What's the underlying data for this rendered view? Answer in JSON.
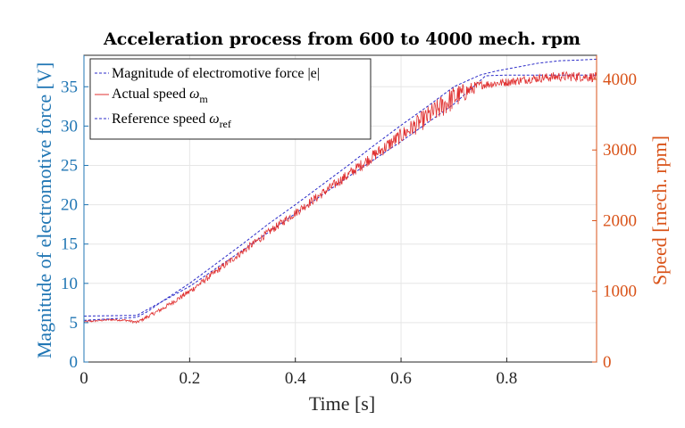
{
  "colors": {
    "left_axis": "#2076B4",
    "right_axis": "#D95319",
    "emf": "#2B2BC8",
    "actual": "#E03030",
    "reference": "#2B2BC8"
  },
  "chart_data": {
    "type": "line",
    "title": "Acceleration process from 600 to 4000 mech. rpm",
    "xlabel": "Time [s]",
    "ylabel_left": "Magnitude of electromotive force [V]",
    "ylabel_right": "Speed [mech. rpm]",
    "xlim": [
      0,
      0.97
    ],
    "ylim_left": [
      0,
      39
    ],
    "ylim_right": [
      0,
      4340
    ],
    "x_ticks": [
      "0",
      "0.2",
      "0.4",
      "0.6",
      "0.8"
    ],
    "x_tick_values": [
      0,
      0.2,
      0.4,
      0.6,
      0.8
    ],
    "y_left_ticks": [
      "0",
      "5",
      "10",
      "15",
      "20",
      "25",
      "30",
      "35"
    ],
    "y_left_tick_values": [
      0,
      5,
      10,
      15,
      20,
      25,
      30,
      35
    ],
    "y_right_ticks": [
      "0",
      "1000",
      "2000",
      "3000",
      "4000"
    ],
    "y_right_tick_values": [
      0,
      1000,
      2000,
      3000,
      4000
    ],
    "grid": true,
    "legend_position": "top-left",
    "legend": [
      {
        "id": "emf",
        "label": "Magnitude of electromotive force |e|"
      },
      {
        "id": "actual",
        "label": "Actual speed ",
        "symbol": "ω",
        "sub": "m"
      },
      {
        "id": "reference",
        "label": "Reference speed ",
        "symbol": "ω",
        "sub": "ref"
      }
    ],
    "series": [
      {
        "id": "emf",
        "axis": "left",
        "x": [
          0,
          0.08,
          0.1,
          0.12,
          0.15,
          0.2,
          0.25,
          0.3,
          0.35,
          0.4,
          0.45,
          0.5,
          0.55,
          0.6,
          0.65,
          0.7,
          0.75,
          0.78,
          0.82,
          0.86,
          0.9,
          0.94,
          0.97
        ],
        "y": [
          5.3,
          5.6,
          5.7,
          6.4,
          7.8,
          10.0,
          12.5,
          15.0,
          17.6,
          20.0,
          22.5,
          25.0,
          27.6,
          30.1,
          32.5,
          35.0,
          36.5,
          37.0,
          37.5,
          38.0,
          38.3,
          38.4,
          38.5
        ]
      },
      {
        "id": "actual",
        "axis": "right",
        "noisy": true,
        "x": [
          0,
          0.05,
          0.08,
          0.1,
          0.12,
          0.15,
          0.2,
          0.25,
          0.3,
          0.35,
          0.4,
          0.45,
          0.5,
          0.55,
          0.6,
          0.65,
          0.7,
          0.75,
          0.8,
          0.85,
          0.9,
          0.94,
          0.97
        ],
        "y": [
          570,
          600,
          590,
          560,
          640,
          760,
          1000,
          1280,
          1560,
          1840,
          2110,
          2380,
          2650,
          2930,
          3200,
          3470,
          3740,
          3920,
          3960,
          4010,
          4040,
          4040,
          4030
        ],
        "noise_amp": [
          15,
          15,
          15,
          20,
          25,
          30,
          40,
          45,
          50,
          55,
          60,
          65,
          75,
          90,
          110,
          150,
          180,
          60,
          60,
          60,
          70,
          70,
          70
        ]
      },
      {
        "id": "reference",
        "axis": "right",
        "x": [
          0,
          0.1,
          0.2,
          0.3,
          0.4,
          0.5,
          0.6,
          0.7,
          0.76,
          0.8,
          0.85,
          0.9,
          0.97
        ],
        "y": [
          650,
          660,
          1070,
          1580,
          2100,
          2620,
          3120,
          3650,
          4050,
          4060,
          4060,
          4060,
          4060
        ]
      }
    ]
  }
}
